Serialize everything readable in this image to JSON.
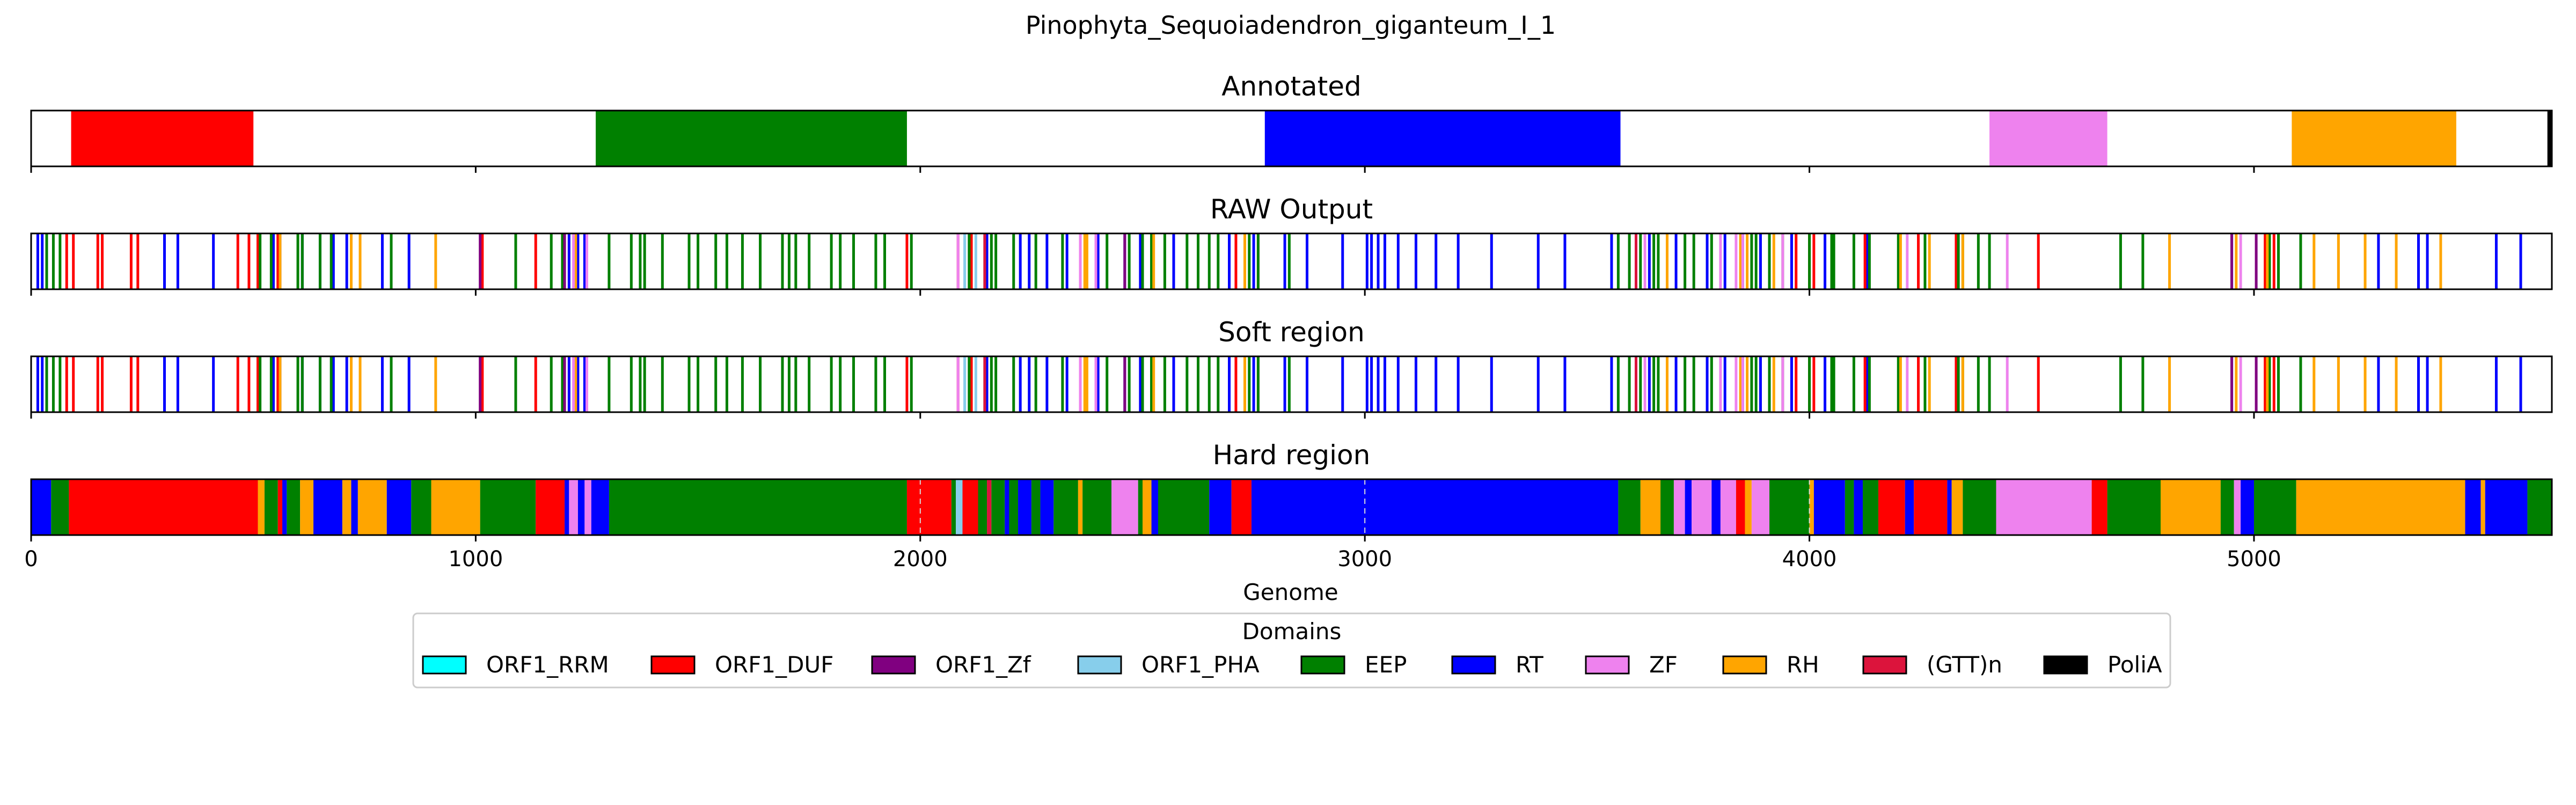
{
  "chart_data": {
    "type": "bar",
    "title": "Pinophyta_Sequoiadendron_giganteum_I_1",
    "xlabel": "Genome",
    "xlim": [
      0,
      5670
    ],
    "xticks": [
      "0",
      "1000",
      "2000",
      "3000",
      "4000",
      "5000"
    ],
    "xtick_values": [
      0,
      1000,
      2000,
      3000,
      4000,
      5000
    ],
    "grid_x": [
      2000,
      3000,
      4000
    ],
    "domain_colors": {
      "ORF1_RRM": "#00ffff",
      "ORF1_DUF": "#ff0000",
      "ORF1_Zf": "#800080",
      "ORF1_PHA": "#87ceeb",
      "EEP": "#008000",
      "RT": "#0000ff",
      "ZF": "#ee82ee",
      "RH": "#ffa500",
      "(GTT)n": "#dc143c",
      "PoliA": "#000000"
    },
    "legend": {
      "title": "Domains",
      "placement": "lower center",
      "entries": [
        "ORF1_RRM",
        "ORF1_DUF",
        "ORF1_Zf",
        "ORF1_PHA",
        "EEP",
        "RT",
        "ZF",
        "RH",
        "(GTT)n",
        "PoliA"
      ]
    },
    "panels": [
      {
        "title": "Annotated",
        "segments": [
          {
            "domain": "ORF1_DUF",
            "start": 90,
            "end": 500
          },
          {
            "domain": "EEP",
            "start": 1270,
            "end": 1970
          },
          {
            "domain": "RT",
            "start": 2775,
            "end": 3575
          },
          {
            "domain": "ZF",
            "start": 4405,
            "end": 4670
          },
          {
            "domain": "RH",
            "start": 5085,
            "end": 5455
          },
          {
            "domain": "PoliA",
            "start": 5660,
            "end": 5670
          }
        ]
      },
      {
        "title": "RAW Output",
        "marks": [
          {
            "domain": "RT",
            "pos": [
              15,
              25,
              300,
              330,
              410,
              545,
              560,
              610,
              650,
              680,
              710,
              790,
              850,
              1210,
              1230,
              1245,
              2110,
              2150,
              2225,
              2245,
              2285,
              2330,
              2400,
              2460,
              2495,
              2570,
              2695,
              2750,
              2820,
              2870,
              2950,
              3005,
              3015,
              3030,
              3045,
              3075,
              3115,
              3160,
              3210,
              3285,
              3390,
              3450,
              3555,
              3640,
              3700,
              3770,
              3810,
              3850,
              3890,
              3960,
              4035,
              4130,
              4335,
              5280,
              5370,
              5390,
              4950,
              5030,
              5545,
              5600
            ]
          },
          {
            "domain": "ORF1_DUF",
            "pos": [
              80,
              95,
              150,
              160,
              225,
              240,
              465,
              490,
              510,
              555,
              1015,
              1135,
              1970,
              2085,
              2115,
              2500,
              2710,
              2760,
              3970,
              4000,
              4010,
              4125,
              4245,
              4330,
              4515,
              5025,
              5045
            ]
          },
          {
            "domain": "EEP",
            "pos": [
              35,
              50,
              65,
              515,
              540,
              600,
              610,
              650,
              675,
              810,
              1090,
              1170,
              1195,
              1300,
              1350,
              1370,
              1380,
              1420,
              1480,
              1500,
              1540,
              1565,
              1600,
              1640,
              1690,
              1705,
              1720,
              1750,
              1800,
              1820,
              1850,
              1900,
              1920,
              1980,
              2110,
              2145,
              2160,
              2170,
              2210,
              2260,
              2320,
              2360,
              2420,
              2470,
              2500,
              2520,
              2550,
              2600,
              2625,
              2650,
              2670,
              2740,
              2760,
              2830,
              3570,
              3595,
              3610,
              3620,
              3650,
              3660,
              3720,
              3740,
              3780,
              3870,
              3880,
              3910,
              3940,
              4000,
              4050,
              4055,
              4100,
              4135,
              4200,
              4260,
              4335,
              4345,
              4380,
              4405,
              4700,
              4750,
              4950,
              5035,
              5055,
              5105
            ]
          },
          {
            "domain": "RH",
            "pos": [
              560,
              720,
              740,
              910,
              1225,
              2370,
              2375,
              2525,
              2730,
              3680,
              3845,
              3860,
              3920,
              4205,
              4270,
              4345,
              4810,
              4960,
              5030,
              5135,
              5190,
              5250,
              5320,
              5420
            ]
          },
          {
            "domain": "ZF",
            "pos": [
              1220,
              1250,
              2085,
              2100,
              2360,
              2395,
              3630,
              3800,
              3835,
              3850,
              3940,
              4220,
              4445,
              4970
            ]
          },
          {
            "domain": "(GTT)n",
            "pos": [
              2145,
              3610
            ]
          },
          {
            "domain": "ORF1_PHA",
            "pos": [
              2100,
              2125
            ]
          },
          {
            "domain": "ORF1_Zf",
            "pos": [
              1010,
              1200,
              2460,
              4950,
              5005
            ]
          }
        ]
      },
      {
        "title": "Soft region",
        "marks_same_as": "RAW Output"
      },
      {
        "title": "Hard region",
        "segments": [
          {
            "domain": "RT",
            "start": 0,
            "end": 45
          },
          {
            "domain": "EEP",
            "start": 45,
            "end": 85
          },
          {
            "domain": "ORF1_DUF",
            "start": 85,
            "end": 510
          },
          {
            "domain": "RH",
            "start": 510,
            "end": 525
          },
          {
            "domain": "EEP",
            "start": 525,
            "end": 555
          },
          {
            "domain": "ORF1_DUF",
            "start": 555,
            "end": 565
          },
          {
            "domain": "RT",
            "start": 565,
            "end": 575
          },
          {
            "domain": "EEP",
            "start": 575,
            "end": 605
          },
          {
            "domain": "RH",
            "start": 605,
            "end": 635
          },
          {
            "domain": "RT",
            "start": 635,
            "end": 700
          },
          {
            "domain": "RH",
            "start": 700,
            "end": 720
          },
          {
            "domain": "RT",
            "start": 720,
            "end": 735
          },
          {
            "domain": "RH",
            "start": 735,
            "end": 800
          },
          {
            "domain": "RT",
            "start": 800,
            "end": 855
          },
          {
            "domain": "EEP",
            "start": 855,
            "end": 900
          },
          {
            "domain": "RH",
            "start": 900,
            "end": 1010
          },
          {
            "domain": "EEP",
            "start": 1010,
            "end": 1135
          },
          {
            "domain": "ORF1_DUF",
            "start": 1135,
            "end": 1200
          },
          {
            "domain": "RT",
            "start": 1200,
            "end": 1210
          },
          {
            "domain": "ZF",
            "start": 1210,
            "end": 1230
          },
          {
            "domain": "RT",
            "start": 1230,
            "end": 1245
          },
          {
            "domain": "ZF",
            "start": 1245,
            "end": 1260
          },
          {
            "domain": "RT",
            "start": 1260,
            "end": 1300
          },
          {
            "domain": "EEP",
            "start": 1300,
            "end": 1970
          },
          {
            "domain": "ORF1_DUF",
            "start": 1970,
            "end": 2070
          },
          {
            "domain": "EEP",
            "start": 2070,
            "end": 2080
          },
          {
            "domain": "ORF1_PHA",
            "start": 2080,
            "end": 2095
          },
          {
            "domain": "ORF1_DUF",
            "start": 2095,
            "end": 2130
          },
          {
            "domain": "EEP",
            "start": 2130,
            "end": 2150
          },
          {
            "domain": "(GTT)n",
            "start": 2150,
            "end": 2160
          },
          {
            "domain": "EEP",
            "start": 2160,
            "end": 2190
          },
          {
            "domain": "RT",
            "start": 2190,
            "end": 2200
          },
          {
            "domain": "EEP",
            "start": 2200,
            "end": 2220
          },
          {
            "domain": "RT",
            "start": 2220,
            "end": 2250
          },
          {
            "domain": "EEP",
            "start": 2250,
            "end": 2270
          },
          {
            "domain": "RT",
            "start": 2270,
            "end": 2300
          },
          {
            "domain": "EEP",
            "start": 2300,
            "end": 2355
          },
          {
            "domain": "RH",
            "start": 2355,
            "end": 2365
          },
          {
            "domain": "EEP",
            "start": 2365,
            "end": 2430
          },
          {
            "domain": "ZF",
            "start": 2430,
            "end": 2490
          },
          {
            "domain": "EEP",
            "start": 2490,
            "end": 2500
          },
          {
            "domain": "RH",
            "start": 2500,
            "end": 2520
          },
          {
            "domain": "RT",
            "start": 2520,
            "end": 2535
          },
          {
            "domain": "EEP",
            "start": 2535,
            "end": 2650
          },
          {
            "domain": "RT",
            "start": 2650,
            "end": 2700
          },
          {
            "domain": "ORF1_DUF",
            "start": 2700,
            "end": 2745
          },
          {
            "domain": "RT",
            "start": 2745,
            "end": 3570
          },
          {
            "domain": "EEP",
            "start": 3570,
            "end": 3620
          },
          {
            "domain": "RH",
            "start": 3620,
            "end": 3665
          },
          {
            "domain": "EEP",
            "start": 3665,
            "end": 3695
          },
          {
            "domain": "ZF",
            "start": 3695,
            "end": 3720
          },
          {
            "domain": "RT",
            "start": 3720,
            "end": 3735
          },
          {
            "domain": "ZF",
            "start": 3735,
            "end": 3780
          },
          {
            "domain": "RT",
            "start": 3780,
            "end": 3800
          },
          {
            "domain": "ZF",
            "start": 3800,
            "end": 3835
          },
          {
            "domain": "ORF1_DUF",
            "start": 3835,
            "end": 3855
          },
          {
            "domain": "RH",
            "start": 3855,
            "end": 3870
          },
          {
            "domain": "ZF",
            "start": 3870,
            "end": 3910
          },
          {
            "domain": "EEP",
            "start": 3910,
            "end": 4000
          },
          {
            "domain": "RH",
            "start": 4000,
            "end": 4010
          },
          {
            "domain": "RT",
            "start": 4010,
            "end": 4080
          },
          {
            "domain": "EEP",
            "start": 4080,
            "end": 4100
          },
          {
            "domain": "RT",
            "start": 4100,
            "end": 4120
          },
          {
            "domain": "EEP",
            "start": 4120,
            "end": 4155
          },
          {
            "domain": "ORF1_DUF",
            "start": 4155,
            "end": 4215
          },
          {
            "domain": "RT",
            "start": 4215,
            "end": 4235
          },
          {
            "domain": "ORF1_DUF",
            "start": 4235,
            "end": 4310
          },
          {
            "domain": "RT",
            "start": 4310,
            "end": 4320
          },
          {
            "domain": "RH",
            "start": 4320,
            "end": 4345
          },
          {
            "domain": "EEP",
            "start": 4345,
            "end": 4420
          },
          {
            "domain": "ZF",
            "start": 4420,
            "end": 4635
          },
          {
            "domain": "ORF1_DUF",
            "start": 4635,
            "end": 4670
          },
          {
            "domain": "EEP",
            "start": 4670,
            "end": 4790
          },
          {
            "domain": "RH",
            "start": 4790,
            "end": 4925
          },
          {
            "domain": "EEP",
            "start": 4925,
            "end": 4955
          },
          {
            "domain": "ZF",
            "start": 4955,
            "end": 4970
          },
          {
            "domain": "RT",
            "start": 4970,
            "end": 5000
          },
          {
            "domain": "EEP",
            "start": 5000,
            "end": 5095
          },
          {
            "domain": "RH",
            "start": 5095,
            "end": 5475
          },
          {
            "domain": "RT",
            "start": 5475,
            "end": 5510
          },
          {
            "domain": "RH",
            "start": 5510,
            "end": 5520
          },
          {
            "domain": "RT",
            "start": 5520,
            "end": 5615
          },
          {
            "domain": "EEP",
            "start": 5615,
            "end": 5670
          }
        ]
      }
    ]
  }
}
